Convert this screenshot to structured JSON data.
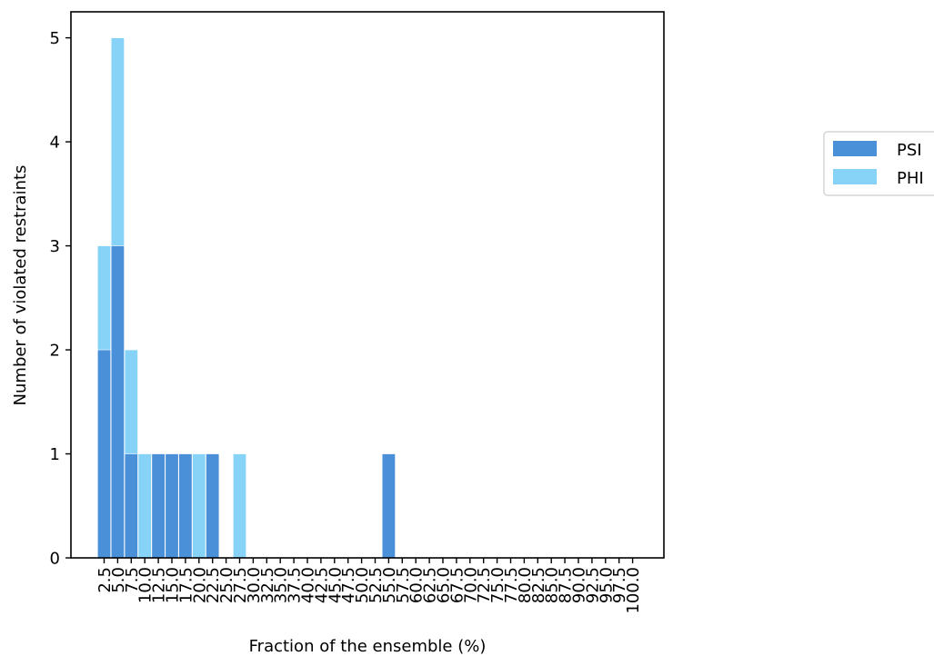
{
  "chart_data": {
    "type": "bar",
    "title": "",
    "xlabel": "Fraction of the ensemble (%)",
    "ylabel": "Number of violated restraints",
    "ylim": [
      0,
      5.25
    ],
    "yticks": [
      "0",
      "1",
      "2",
      "3",
      "4",
      "5"
    ],
    "categories": [
      "2.5",
      "5.0",
      "7.5",
      "10.0",
      "12.5",
      "15.0",
      "17.5",
      "20.0",
      "22.5",
      "25.0",
      "27.5",
      "30.0",
      "32.5",
      "35.0",
      "37.5",
      "40.0",
      "42.5",
      "45.0",
      "47.5",
      "50.0",
      "52.5",
      "55.0",
      "57.5",
      "60.0",
      "62.5",
      "65.0",
      "67.5",
      "70.0",
      "72.5",
      "75.0",
      "77.5",
      "80.0",
      "82.5",
      "85.0",
      "87.5",
      "90.0",
      "92.5",
      "95.0",
      "97.5",
      "100.0"
    ],
    "series": [
      {
        "name": "PSI",
        "color": "#4a90d9",
        "values": [
          2,
          3,
          1,
          0,
          1,
          1,
          1,
          0,
          1,
          0,
          0,
          0,
          0,
          0,
          0,
          0,
          0,
          0,
          0,
          0,
          0,
          1,
          0,
          0,
          0,
          0,
          0,
          0,
          0,
          0,
          0,
          0,
          0,
          0,
          0,
          0,
          0,
          0,
          0,
          0
        ]
      },
      {
        "name": "PHI",
        "color": "#87d3f8",
        "values": [
          3,
          5,
          2,
          1,
          0,
          0,
          0,
          1,
          0,
          0,
          1,
          0,
          0,
          0,
          0,
          0,
          0,
          0,
          0,
          0,
          0,
          0,
          0,
          0,
          0,
          0,
          0,
          0,
          0,
          0,
          0,
          0,
          0,
          0,
          0,
          0,
          0,
          0,
          0,
          0
        ]
      }
    ],
    "legend": "right"
  }
}
